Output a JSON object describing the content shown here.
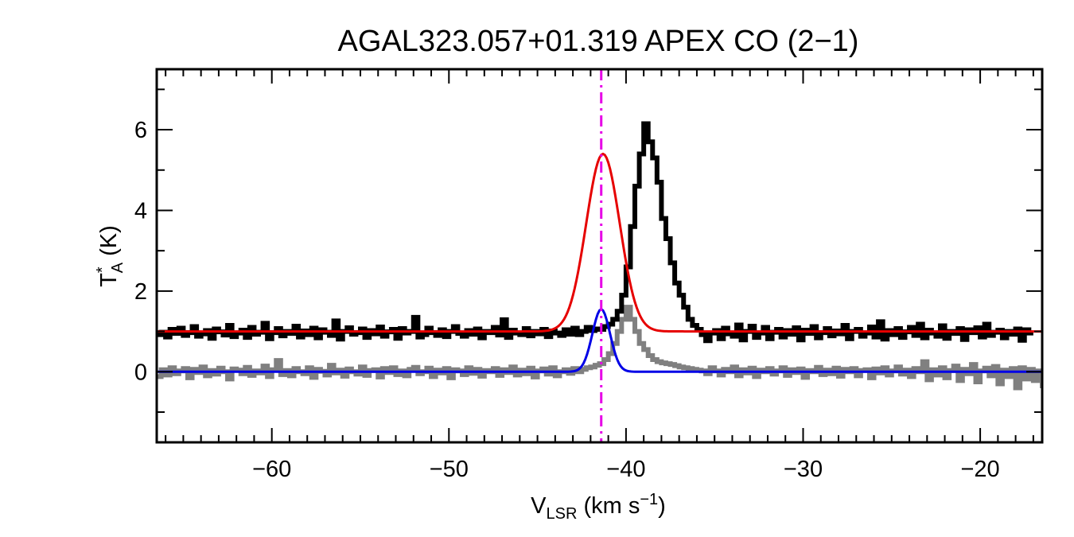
{
  "chart_data": {
    "type": "line",
    "title": "AGAL323.057+01.319  APEX CO (2−1)",
    "xlabel": {
      "main": "V",
      "sub": "LSR",
      "unit": " (km s",
      "sup": "−1",
      "close": ")"
    },
    "ylabel": {
      "main": "T",
      "sup": "*",
      "sub": "A",
      "unit": " (K)"
    },
    "xlim": [
      -66.5,
      -16.5
    ],
    "ylim": [
      -1.75,
      7.5
    ],
    "x_ticks": [
      -60,
      -50,
      -40,
      -30,
      -20
    ],
    "x_tick_labels": [
      "−60",
      "−50",
      "−40",
      "−30",
      "−20"
    ],
    "y_ticks": [
      0,
      2,
      4,
      6
    ],
    "y_tick_labels": [
      "0",
      "2",
      "4",
      "6"
    ],
    "v_line": {
      "x": -41.4,
      "color": "#e600e6",
      "style": "dash-dot"
    },
    "series": [
      {
        "role": "observed spectrum",
        "color": "#000000",
        "style": "histogram",
        "x_start": -66.5,
        "x_step": 0.25,
        "values": [
          0.92,
          0.98,
          0.86,
          1.05,
          0.95,
          1.08,
          0.9,
          0.97,
          1.12,
          0.88,
          0.94,
          1.02,
          0.83,
          1.06,
          0.99,
          0.91,
          1.15,
          0.87,
          0.96,
          1.03,
          0.85,
          1.1,
          0.93,
          0.98,
          1.2,
          0.82,
          0.97,
          1.07,
          0.89,
          1.0,
          0.95,
          1.13,
          0.86,
          1.01,
          0.92,
          1.08,
          0.84,
          1.04,
          0.98,
          0.9,
          1.26,
          0.81,
          1.0,
          1.09,
          0.93,
          0.97,
          1.06,
          0.85,
          1.02,
          0.94,
          1.11,
          0.88,
          0.99,
          1.05,
          0.83,
          1.07,
          0.96,
          1.0,
          1.35,
          0.86,
          0.92,
          1.08,
          0.97,
          0.9,
          1.04,
          0.87,
          1.0,
          1.12,
          0.95,
          0.88,
          1.02,
          0.93,
          1.06,
          0.84,
          1.0,
          0.97,
          1.1,
          0.91,
          1.29,
          0.85,
          1.03,
          0.96,
          0.92,
          1.07,
          0.89,
          1.0,
          0.94,
          1.05,
          0.87,
          1.01,
          0.96,
          0.9,
          1.04,
          0.93,
          1.08,
          0.92,
          1.0,
          1.1,
          1.02,
          1.06,
          1.05,
          1.12,
          1.18,
          1.3,
          1.5,
          1.9,
          2.6,
          3.6,
          4.6,
          5.4,
          6.15,
          5.7,
          5.3,
          4.7,
          3.8,
          3.3,
          2.7,
          2.2,
          1.9,
          1.6,
          1.3,
          1.15,
          1.05,
          0.92,
          0.77,
          0.96,
          1.02,
          0.82,
          1.08,
          0.94,
          0.88,
          1.16,
          0.79,
          1.0,
          1.13,
          0.85,
          0.96,
          1.1,
          0.82,
          0.98,
          1.05,
          0.86,
          1.02,
          0.93,
          1.09,
          0.79,
          1.03,
          0.95,
          1.12,
          0.84,
          0.97,
          1.07,
          0.89,
          1.01,
          0.94,
          1.15,
          0.82,
          1.0,
          1.05,
          0.88,
          0.96,
          1.11,
          0.86,
          1.24,
          0.81,
          1.02,
          0.92,
          1.07,
          0.85,
          0.99,
          1.1,
          0.9,
          1.18,
          0.84,
          1.03,
          0.96,
          0.88,
          1.14,
          0.83,
          1.0,
          0.95,
          1.07,
          0.8,
          1.04,
          0.97,
          1.09,
          0.86,
          1.18,
          0.9,
          0.98,
          1.03,
          0.84,
          1.0,
          0.93,
          1.06,
          0.78,
          1.04,
          0.96
        ]
      },
      {
        "role": "secondary spectrum",
        "color": "#808080",
        "style": "histogram",
        "x_start": -66.5,
        "x_step": 0.25,
        "values": [
          -0.12,
          0.05,
          -0.08,
          0.1,
          -0.05,
          0.02,
          0.08,
          -0.15,
          0.06,
          -0.02,
          0.12,
          -0.1,
          0.03,
          -0.06,
          0.09,
          0.0,
          -0.18,
          0.07,
          0.04,
          -0.05,
          0.11,
          -0.09,
          0.02,
          -0.03,
          0.14,
          -0.12,
          0.05,
          0.28,
          -0.07,
          0.03,
          -0.1,
          0.08,
          0.0,
          -0.05,
          0.1,
          -0.14,
          0.06,
          0.01,
          -0.08,
          0.16,
          -0.03,
          0.04,
          -0.11,
          0.07,
          0.0,
          -0.06,
          0.12,
          -0.09,
          0.03,
          0.05,
          -0.13,
          0.08,
          -0.02,
          0.1,
          -0.07,
          0.02,
          -0.1,
          0.06,
          0.11,
          -0.05,
          0.0,
          0.09,
          -0.12,
          0.04,
          -0.03,
          0.08,
          -0.15,
          0.05,
          0.02,
          -0.07,
          0.1,
          -0.04,
          0.06,
          -0.11,
          0.03,
          0.0,
          0.08,
          -0.09,
          0.05,
          -0.02,
          0.12,
          -0.08,
          0.04,
          -0.05,
          0.09,
          -0.13,
          0.02,
          0.07,
          -0.06,
          0.1,
          -0.1,
          0.0,
          0.05,
          -0.04,
          0.08,
          0.0,
          0.06,
          0.1,
          0.12,
          0.16,
          0.2,
          0.3,
          0.45,
          0.7,
          1.0,
          1.3,
          1.6,
          1.3,
          1.0,
          0.7,
          0.55,
          0.4,
          0.3,
          0.25,
          0.22,
          0.2,
          0.18,
          0.15,
          0.12,
          0.1,
          0.08,
          0.06,
          0.04,
          0.02,
          -0.05,
          0.1,
          0.02,
          -0.08,
          0.06,
          0.0,
          0.12,
          -0.1,
          0.05,
          -0.03,
          0.09,
          -0.12,
          0.04,
          0.0,
          0.08,
          -0.06,
          0.02,
          0.1,
          -0.09,
          0.05,
          -0.02,
          0.07,
          -0.14,
          0.03,
          0.0,
          0.11,
          -0.07,
          0.04,
          -0.05,
          0.09,
          -0.11,
          0.06,
          0.0,
          0.08,
          -0.1,
          0.03,
          0.05,
          -0.15,
          0.07,
          -0.03,
          0.1,
          -0.08,
          0.02,
          0.12,
          -0.06,
          0.04,
          -0.12,
          0.08,
          0.0,
          0.25,
          -0.2,
          0.05,
          -0.08,
          0.1,
          -0.15,
          0.03,
          0.14,
          -0.22,
          0.06,
          -0.05,
          0.18,
          -0.25,
          0.02,
          0.09,
          -0.1,
          0.13,
          -0.3,
          0.04,
          -0.12,
          0.08,
          -0.4,
          0.1,
          -0.18,
          0.06,
          -0.22,
          0.02,
          -0.35,
          0.05,
          -0.1,
          -0.55
        ]
      },
      {
        "role": "fit",
        "color": "#e60000",
        "style": "smooth",
        "model": {
          "baseline": 1.0,
          "amplitude": 4.4,
          "center": -41.3,
          "sigma": 0.95
        }
      },
      {
        "role": "fit",
        "color": "#0000e6",
        "style": "smooth",
        "model": {
          "baseline": 0.0,
          "amplitude": 1.55,
          "center": -41.4,
          "sigma": 0.5
        }
      }
    ]
  }
}
